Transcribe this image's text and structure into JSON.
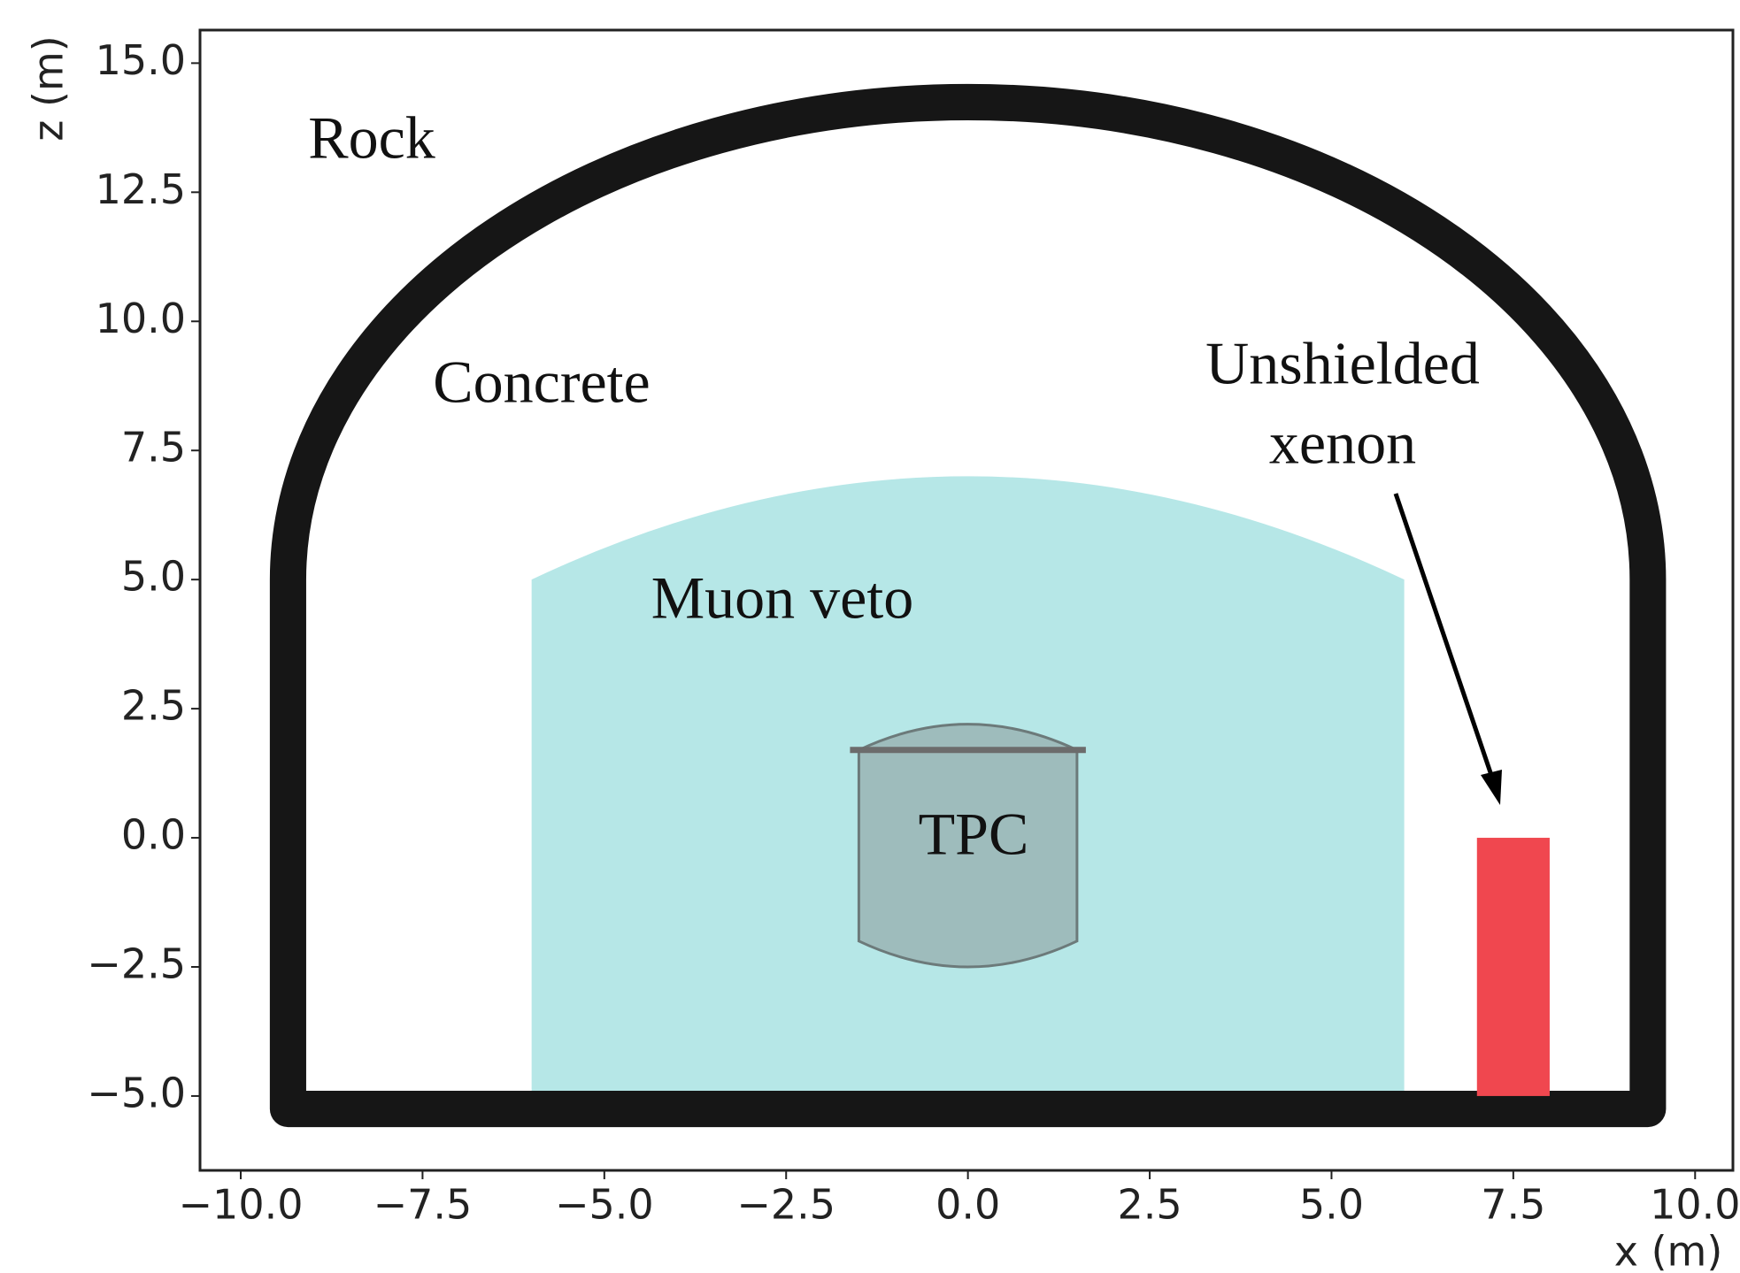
{
  "chart_data": {
    "type": "geometry",
    "xlabel": "x (m)",
    "ylabel": "z (m)",
    "xlim": [
      -10.56,
      10.52
    ],
    "ylim": [
      -6.44,
      15.64
    ],
    "xticks": [
      {
        "value": -10,
        "label": "−10.0"
      },
      {
        "value": -7.5,
        "label": "−7.5"
      },
      {
        "value": -5,
        "label": "−5.0"
      },
      {
        "value": -2.5,
        "label": "−2.5"
      },
      {
        "value": 0,
        "label": "0.0"
      },
      {
        "value": 2.5,
        "label": "2.5"
      },
      {
        "value": 5,
        "label": "5.0"
      },
      {
        "value": 7.5,
        "label": "7.5"
      },
      {
        "value": 10,
        "label": "10.0"
      }
    ],
    "yticks": [
      {
        "value": -5,
        "label": "−5.0"
      },
      {
        "value": -2.5,
        "label": "−2.5"
      },
      {
        "value": 0,
        "label": "0.0"
      },
      {
        "value": 2.5,
        "label": "2.5"
      },
      {
        "value": 5,
        "label": "5.0"
      },
      {
        "value": 7.5,
        "label": "7.5"
      },
      {
        "value": 10,
        "label": "10.0"
      },
      {
        "value": 12.5,
        "label": "12.5"
      },
      {
        "value": 15,
        "label": "15.0"
      }
    ],
    "labels": {
      "rock": "Rock",
      "concrete": "Concrete",
      "veto": "Muon veto",
      "tpc": "TPC",
      "xenon": [
        "Unshielded",
        "xenon"
      ]
    },
    "cavern": {
      "x": [
        -9.35,
        9.35
      ],
      "z_floor": -5.25,
      "z_wall_top": 5,
      "z_apex": 14.25,
      "thickness": 0.5,
      "color": "#161616"
    },
    "veto": {
      "x": [
        -6,
        6
      ],
      "z": [
        -5,
        5
      ],
      "z_apex": 7,
      "color": "#a9e3e3"
    },
    "tpc": {
      "x": [
        -1.5,
        1.5
      ],
      "z": [
        -2,
        1.7
      ],
      "bulge": 0.5,
      "color": "#8a9999"
    },
    "xenon": {
      "x": [
        7,
        8
      ],
      "z": [
        -5,
        0
      ],
      "color": "#f0474f"
    }
  }
}
